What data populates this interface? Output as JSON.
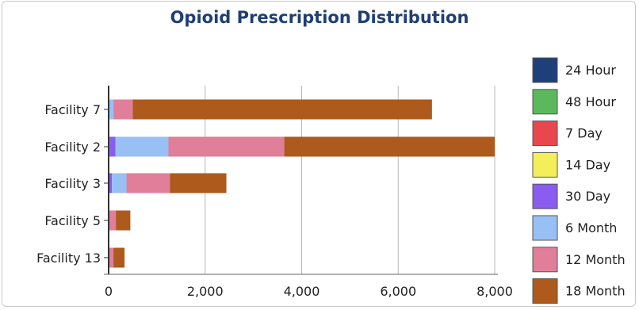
{
  "chart_data": {
    "type": "bar",
    "orientation": "horizontal",
    "stacked": true,
    "title": "Opioid Prescription Distribution",
    "xlabel": "",
    "ylabel": "",
    "xlim": [
      0,
      8000
    ],
    "x_ticks": [
      "0",
      "2,000",
      "4,000",
      "6,000",
      "8,000"
    ],
    "x_tick_values": [
      0,
      2000,
      4000,
      6000,
      8000
    ],
    "grid": "vertical",
    "legend_position": "right",
    "categories": [
      "Facility 7",
      "Facility 2",
      "Facility 3",
      "Facility 5",
      "Facility 13"
    ],
    "series": [
      {
        "name": "24 Hour",
        "color": "#1f3f7a",
        "values": [
          0,
          0,
          0,
          0,
          0
        ]
      },
      {
        "name": "48 Hour",
        "color": "#5cb85c",
        "values": [
          20,
          20,
          10,
          0,
          0
        ]
      },
      {
        "name": "7 Day",
        "color": "#e8474e",
        "values": [
          0,
          0,
          0,
          0,
          0
        ]
      },
      {
        "name": "14 Day",
        "color": "#f4ee5a",
        "values": [
          0,
          0,
          0,
          0,
          0
        ]
      },
      {
        "name": "30 Day",
        "color": "#8a5cf0",
        "values": [
          0,
          120,
          60,
          0,
          0
        ]
      },
      {
        "name": "6 Month",
        "color": "#98c0f5",
        "values": [
          80,
          1100,
          300,
          0,
          0
        ]
      },
      {
        "name": "12 Month",
        "color": "#e17e9a",
        "values": [
          400,
          2400,
          900,
          150,
          100
        ]
      },
      {
        "name": "18 Month",
        "color": "#ad5a1c",
        "values": [
          6200,
          4360,
          1170,
          300,
          230
        ]
      }
    ]
  }
}
